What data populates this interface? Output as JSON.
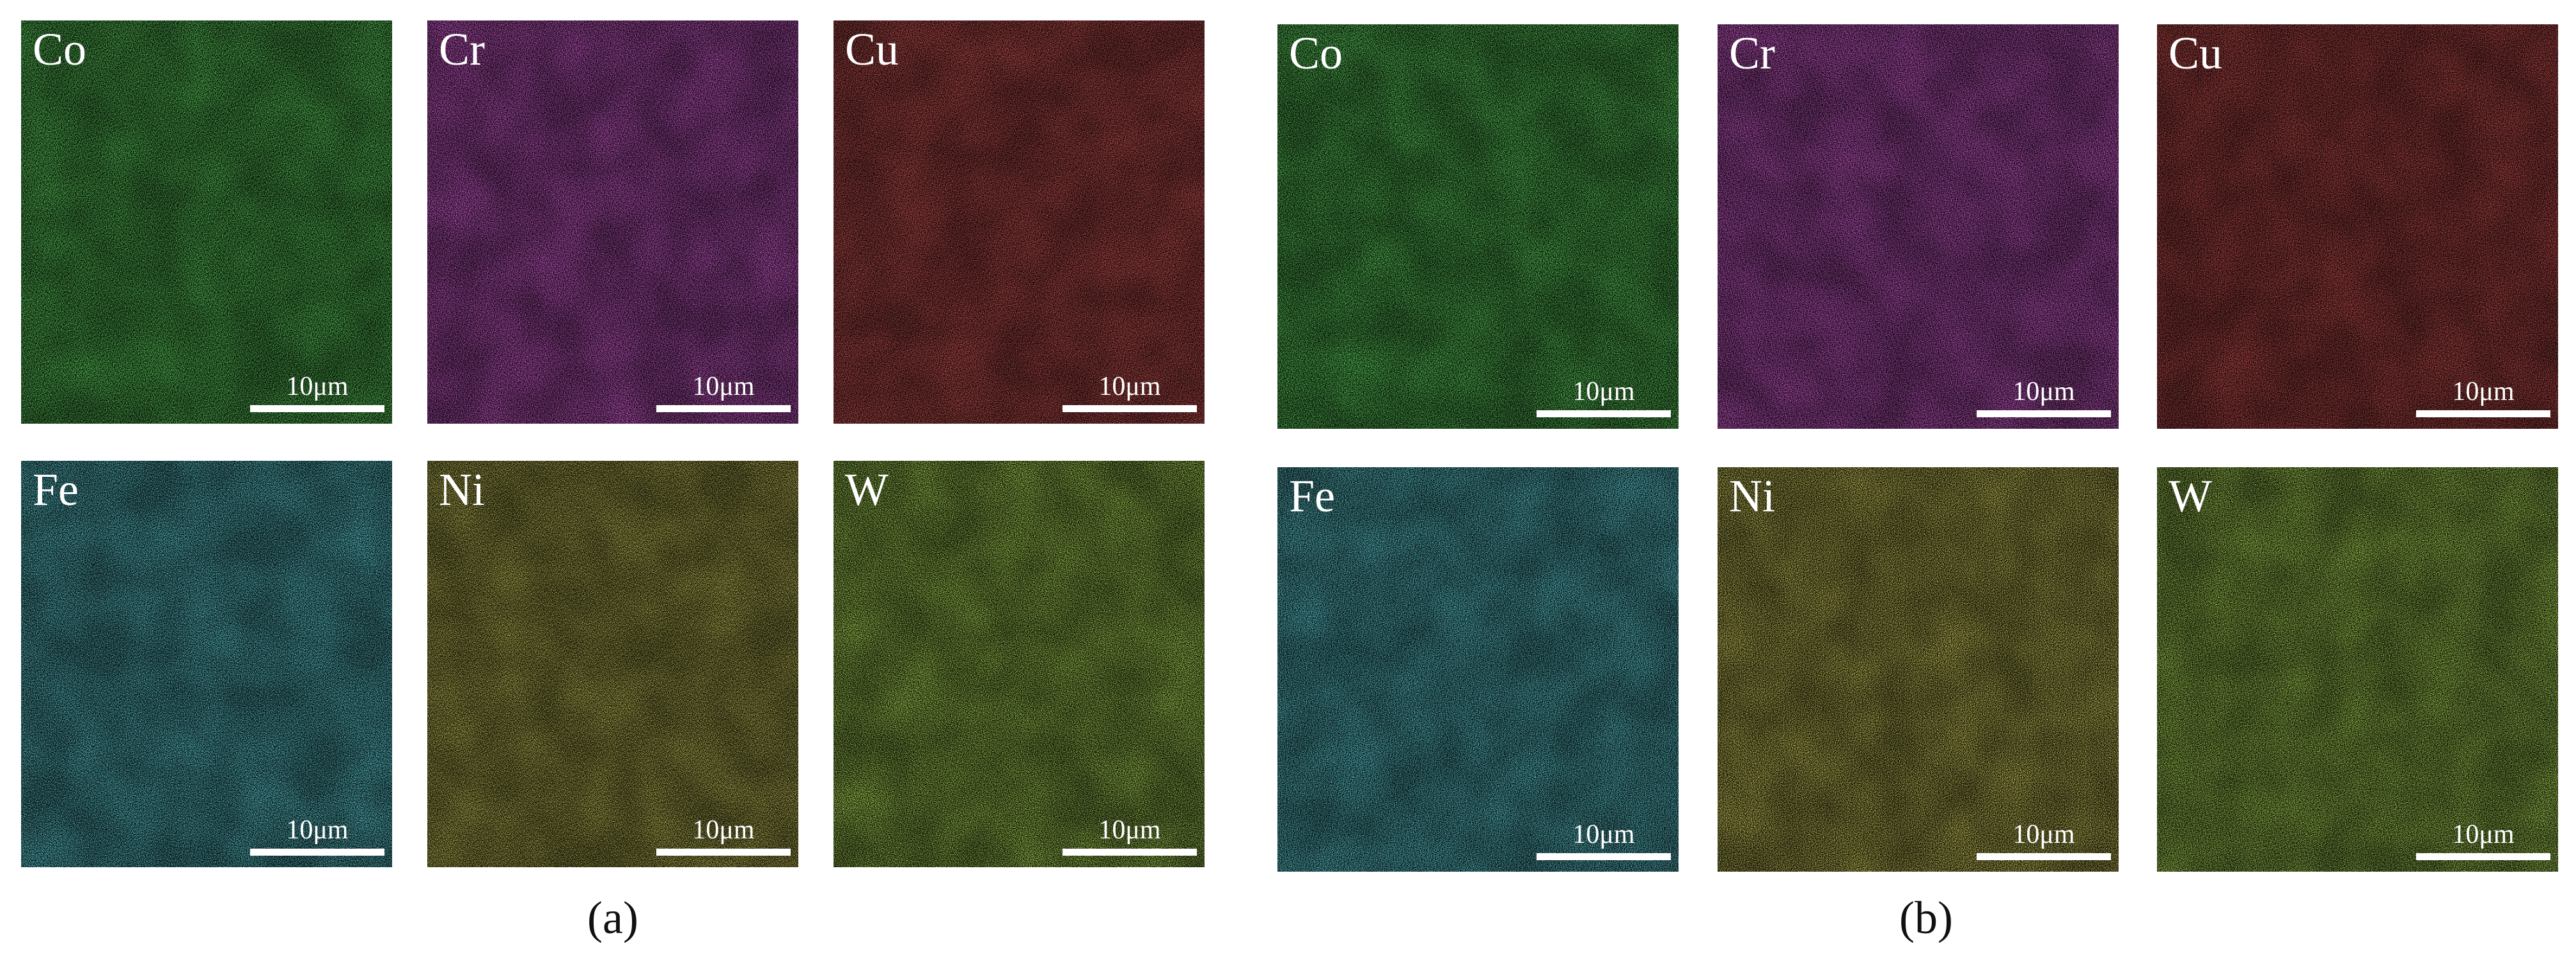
{
  "panels": [
    {
      "caption": "(a)",
      "maps": [
        {
          "element": "Co",
          "scale": "10μm",
          "color": "#1fc21f"
        },
        {
          "element": "Cr",
          "scale": "10μm",
          "color": "#c21fc2"
        },
        {
          "element": "Cu",
          "scale": "10μm",
          "color": "#cc1a1a"
        },
        {
          "element": "Fe",
          "scale": "10μm",
          "color": "#1fb8c8"
        },
        {
          "element": "Ni",
          "scale": "10μm",
          "color": "#a8a21a"
        },
        {
          "element": "W",
          "scale": "10μm",
          "color": "#7ed61a"
        }
      ]
    },
    {
      "caption": "(b)",
      "maps": [
        {
          "element": "Co",
          "scale": "10μm",
          "color": "#1fc21f"
        },
        {
          "element": "Cr",
          "scale": "10μm",
          "color": "#c21fc2"
        },
        {
          "element": "Cu",
          "scale": "10μm",
          "color": "#b81616"
        },
        {
          "element": "Fe",
          "scale": "10μm",
          "color": "#1fb8c8"
        },
        {
          "element": "Ni",
          "scale": "10μm",
          "color": "#b8b01c"
        },
        {
          "element": "W",
          "scale": "10μm",
          "color": "#7ed61a"
        }
      ]
    }
  ]
}
